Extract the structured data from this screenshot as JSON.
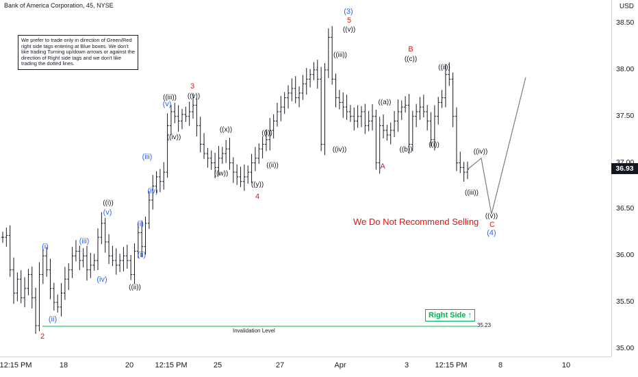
{
  "title": "Bank of America Corporation, 45, NYSE",
  "currency": "USD",
  "note": "We prefer to trade only in direction of Green/Red right side tags entering at Blue boxes. We don't like trading Turning up/down arrows or against the direction of Right side tags and we don't like trading the dotted lines.",
  "current_price": "36.93",
  "recommendation": "We Do Not Recommend Selling",
  "right_side_tag": "Right Side",
  "invalidation": {
    "label": "Invalidation Level",
    "value": "35.23"
  },
  "colors": {
    "black": "#131722",
    "blue": "#2962ff",
    "red": "#e3130f",
    "green": "#00b050"
  },
  "chart_data": {
    "type": "ohlc",
    "title": "Bank of America Corporation, 45, NYSE",
    "ylim": [
      34.95,
      38.72
    ],
    "y_ticks": [
      "35.00",
      "35.50",
      "36.00",
      "36.50",
      "37.00",
      "37.50",
      "38.00",
      "38.50"
    ],
    "x_ticks": [
      "12:15 PM",
      "18",
      "20",
      "12:15 PM",
      "25",
      "27",
      "Apr",
      "3",
      "12:15 PM",
      "8",
      "10"
    ],
    "price_path": [
      36.2,
      36.22,
      35.85,
      35.6,
      35.75,
      35.55,
      35.65,
      35.8,
      35.55,
      35.25,
      35.8,
      36.0,
      35.85,
      35.65,
      35.5,
      35.45,
      35.6,
      35.75,
      35.85,
      36.0,
      36.05,
      35.95,
      36.0,
      35.85,
      35.9,
      35.95,
      36.2,
      36.35,
      36.15,
      36.0,
      35.95,
      35.9,
      35.95,
      36.0,
      35.95,
      35.8,
      36.05,
      36.25,
      36.1,
      36.35,
      36.6,
      36.75,
      36.85,
      36.8,
      36.9,
      37.4,
      37.55,
      37.5,
      37.45,
      37.52,
      37.5,
      37.55,
      37.62,
      37.4,
      37.2,
      37.1,
      37.05,
      37.0,
      36.95,
      37.05,
      37.1,
      37.15,
      37.0,
      36.9,
      36.85,
      36.8,
      36.85,
      36.9,
      37.0,
      37.05,
      37.15,
      37.2,
      37.25,
      37.35,
      37.45,
      37.55,
      37.6,
      37.7,
      37.75,
      37.8,
      37.7,
      37.75,
      37.85,
      37.9,
      37.95,
      38.0,
      37.9,
      37.2,
      38.0,
      38.35,
      37.9,
      37.7,
      37.65,
      37.6,
      37.55,
      37.5,
      37.45,
      37.5,
      37.55,
      37.4,
      37.45,
      37.5,
      37.0,
      37.4,
      37.35,
      37.3,
      37.35,
      37.45,
      37.55,
      37.6,
      37.62,
      37.2,
      37.5,
      37.55,
      37.6,
      37.55,
      37.45,
      37.25,
      37.5,
      37.65,
      37.7,
      37.95,
      37.9,
      37.5,
      37.0,
      36.95,
      36.9,
      36.93
    ],
    "price_low": 35.23,
    "price_high": 38.35,
    "projection": [
      {
        "x": "4/6 11:00",
        "y": 36.93
      },
      {
        "x": "4/6 14:00",
        "y": 37.05
      },
      {
        "x": "4/7 12:00",
        "y": 36.45
      },
      {
        "x": "4/9 10:00",
        "y": 37.92
      }
    ],
    "invalidation_level": 35.23,
    "wave_labels": [
      {
        "text": "2",
        "color": "red"
      },
      {
        "text": "(i)",
        "color": "blue"
      },
      {
        "text": "(ii)",
        "color": "blue"
      },
      {
        "text": "(iii)",
        "color": "blue"
      },
      {
        "text": "(iv)",
        "color": "blue"
      },
      {
        "text": "((i))",
        "color": "black"
      },
      {
        "text": "(v)",
        "color": "blue"
      },
      {
        "text": "((ii))",
        "color": "black"
      },
      {
        "text": "(i)",
        "color": "blue"
      },
      {
        "text": "(ii)",
        "color": "blue"
      },
      {
        "text": "(iii)",
        "color": "blue"
      },
      {
        "text": "(iv)",
        "color": "blue"
      },
      {
        "text": "((iii))",
        "color": "black"
      },
      {
        "text": "(v)",
        "color": "blue"
      },
      {
        "text": "((iv))",
        "color": "black"
      },
      {
        "text": "3",
        "color": "red"
      },
      {
        "text": "((v))",
        "color": "black"
      },
      {
        "text": "((w))",
        "color": "black"
      },
      {
        "text": "((x))",
        "color": "black"
      },
      {
        "text": "((y))",
        "color": "black"
      },
      {
        "text": "4",
        "color": "red"
      },
      {
        "text": "((i))",
        "color": "black"
      },
      {
        "text": "((ii))",
        "color": "black"
      },
      {
        "text": "((iii))",
        "color": "black"
      },
      {
        "text": "((iv))",
        "color": "black"
      },
      {
        "text": "(3)",
        "color": "blue"
      },
      {
        "text": "5",
        "color": "red"
      },
      {
        "text": "((v))",
        "color": "black"
      },
      {
        "text": "((a))",
        "color": "black"
      },
      {
        "text": "A",
        "color": "red"
      },
      {
        "text": "((b))",
        "color": "black"
      },
      {
        "text": "B",
        "color": "red"
      },
      {
        "text": "((c))",
        "color": "black"
      },
      {
        "text": "((i))",
        "color": "black"
      },
      {
        "text": "((ii))",
        "color": "black"
      },
      {
        "text": "((iii))",
        "color": "black"
      },
      {
        "text": "((iv))",
        "color": "black"
      },
      {
        "text": "((v))",
        "color": "black"
      },
      {
        "text": "C",
        "color": "red"
      },
      {
        "text": "(4)",
        "color": "blue"
      }
    ]
  }
}
